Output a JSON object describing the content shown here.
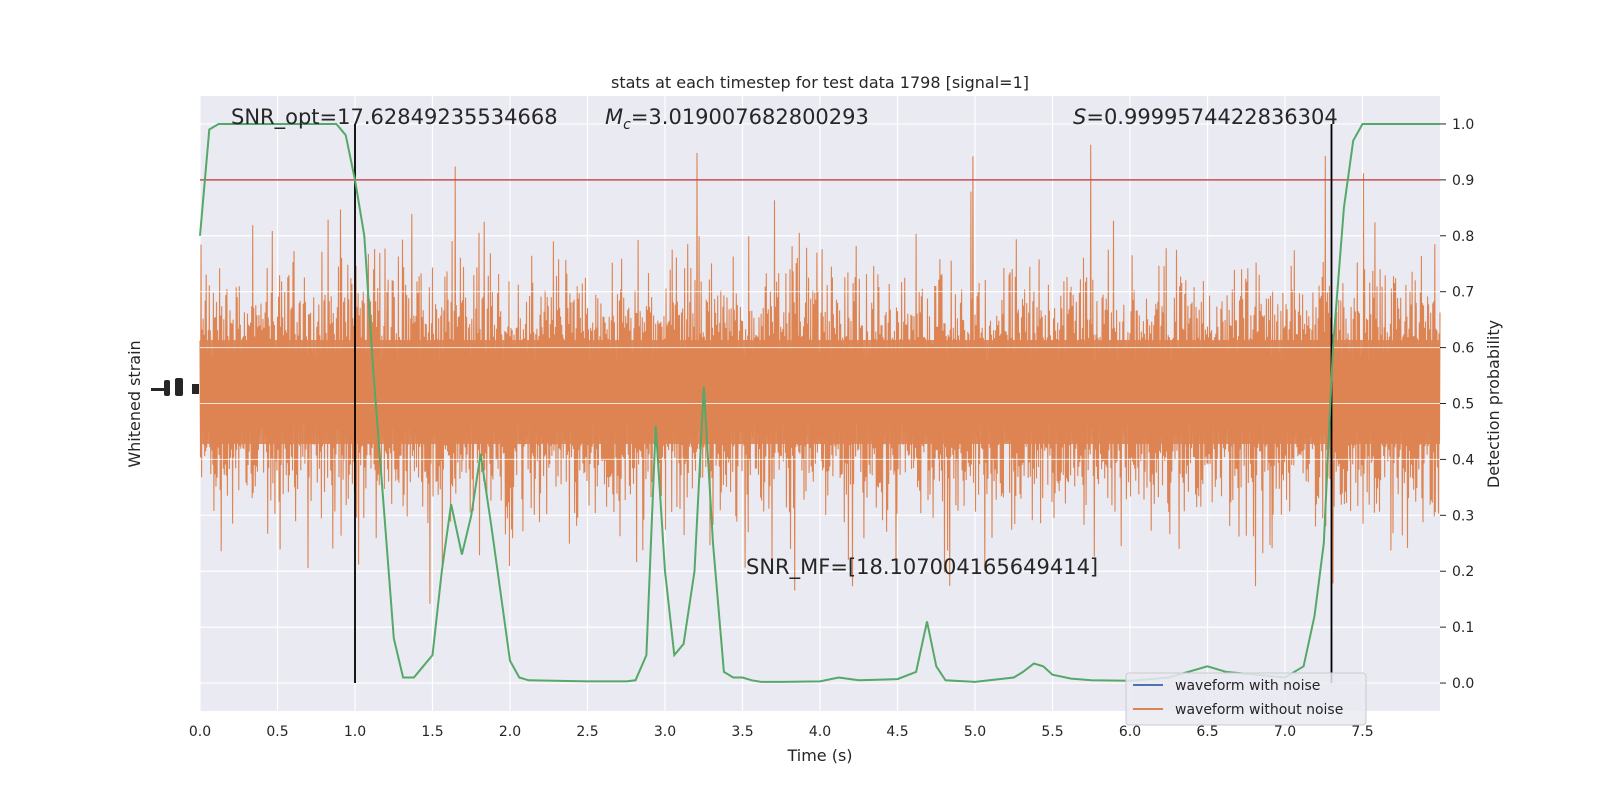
{
  "chart_data": {
    "type": "line",
    "title": "stats at each timestep for test data 1798 [signal=1]",
    "xlabel": "Time (s)",
    "ylabel_left": "Whitened strain",
    "ylabel_right": "Detection probability",
    "xlim": [
      0.0,
      8.0
    ],
    "xticks": [
      "0.0",
      "0.5",
      "1.0",
      "1.5",
      "2.0",
      "2.5",
      "3.0",
      "3.5",
      "4.0",
      "4.5",
      "5.0",
      "5.5",
      "6.0",
      "6.5",
      "7.0",
      "7.5"
    ],
    "ylim_right": [
      -0.05,
      1.05
    ],
    "yticks_right": [
      "0.0",
      "0.1",
      "0.2",
      "0.3",
      "0.4",
      "0.5",
      "0.6",
      "0.7",
      "0.8",
      "0.9",
      "1.0"
    ],
    "grid": true,
    "legend_position": "lower-right",
    "annotations": {
      "snr_opt": "SNR_opt=17.62849235534668",
      "mc_symbol": "M",
      "mc_sub": "c",
      "mc_value": "=3.019007682800293",
      "s_symbol": "S",
      "s_value": "=0.9999574422836304",
      "snr_mf": "SNR_MF=[18.107004165649414]"
    },
    "threshold": 0.9,
    "vlines_x": [
      1.0,
      7.3
    ],
    "series": [
      {
        "name": "waveform with noise",
        "color": "#4c72b0"
      },
      {
        "name": "waveform without noise",
        "color": "#dd8452"
      },
      {
        "color": "#55a868",
        "x": [
          0.0,
          0.06,
          0.12,
          0.19,
          0.25,
          0.31,
          0.38,
          0.44,
          0.5,
          0.56,
          0.62,
          0.69,
          0.75,
          0.81,
          0.88,
          0.94,
          1.0,
          1.06,
          1.12,
          1.19,
          1.25,
          1.31,
          1.38,
          1.44,
          1.5,
          1.56,
          1.62,
          1.69,
          1.75,
          1.81,
          1.88,
          1.94,
          2.0,
          2.06,
          2.12,
          2.5,
          2.75,
          2.81,
          2.88,
          2.94,
          3.0,
          3.06,
          3.12,
          3.19,
          3.25,
          3.31,
          3.38,
          3.44,
          3.5,
          3.56,
          3.62,
          3.75,
          4.0,
          4.12,
          4.25,
          4.5,
          4.62,
          4.69,
          4.75,
          4.81,
          5.0,
          5.25,
          5.31,
          5.38,
          5.44,
          5.5,
          5.62,
          5.75,
          6.0,
          6.25,
          6.5,
          6.62,
          7.0,
          7.12,
          7.19,
          7.25,
          7.31,
          7.38,
          7.44,
          7.5,
          8.0
        ],
        "values": [
          0.8,
          0.99,
          1.0,
          1.0,
          1.0,
          1.0,
          1.0,
          1.0,
          1.0,
          1.0,
          1.0,
          1.0,
          1.0,
          1.0,
          1.0,
          0.98,
          0.9,
          0.8,
          0.55,
          0.3,
          0.08,
          0.01,
          0.01,
          0.03,
          0.05,
          0.2,
          0.32,
          0.23,
          0.3,
          0.41,
          0.28,
          0.16,
          0.04,
          0.01,
          0.005,
          0.003,
          0.003,
          0.005,
          0.05,
          0.46,
          0.2,
          0.05,
          0.07,
          0.2,
          0.53,
          0.25,
          0.02,
          0.01,
          0.01,
          0.005,
          0.002,
          0.002,
          0.003,
          0.01,
          0.005,
          0.007,
          0.02,
          0.11,
          0.03,
          0.005,
          0.002,
          0.01,
          0.02,
          0.035,
          0.03,
          0.015,
          0.008,
          0.005,
          0.004,
          0.01,
          0.03,
          0.02,
          0.01,
          0.03,
          0.12,
          0.25,
          0.6,
          0.85,
          0.97,
          1.0,
          1.0
        ]
      }
    ]
  }
}
